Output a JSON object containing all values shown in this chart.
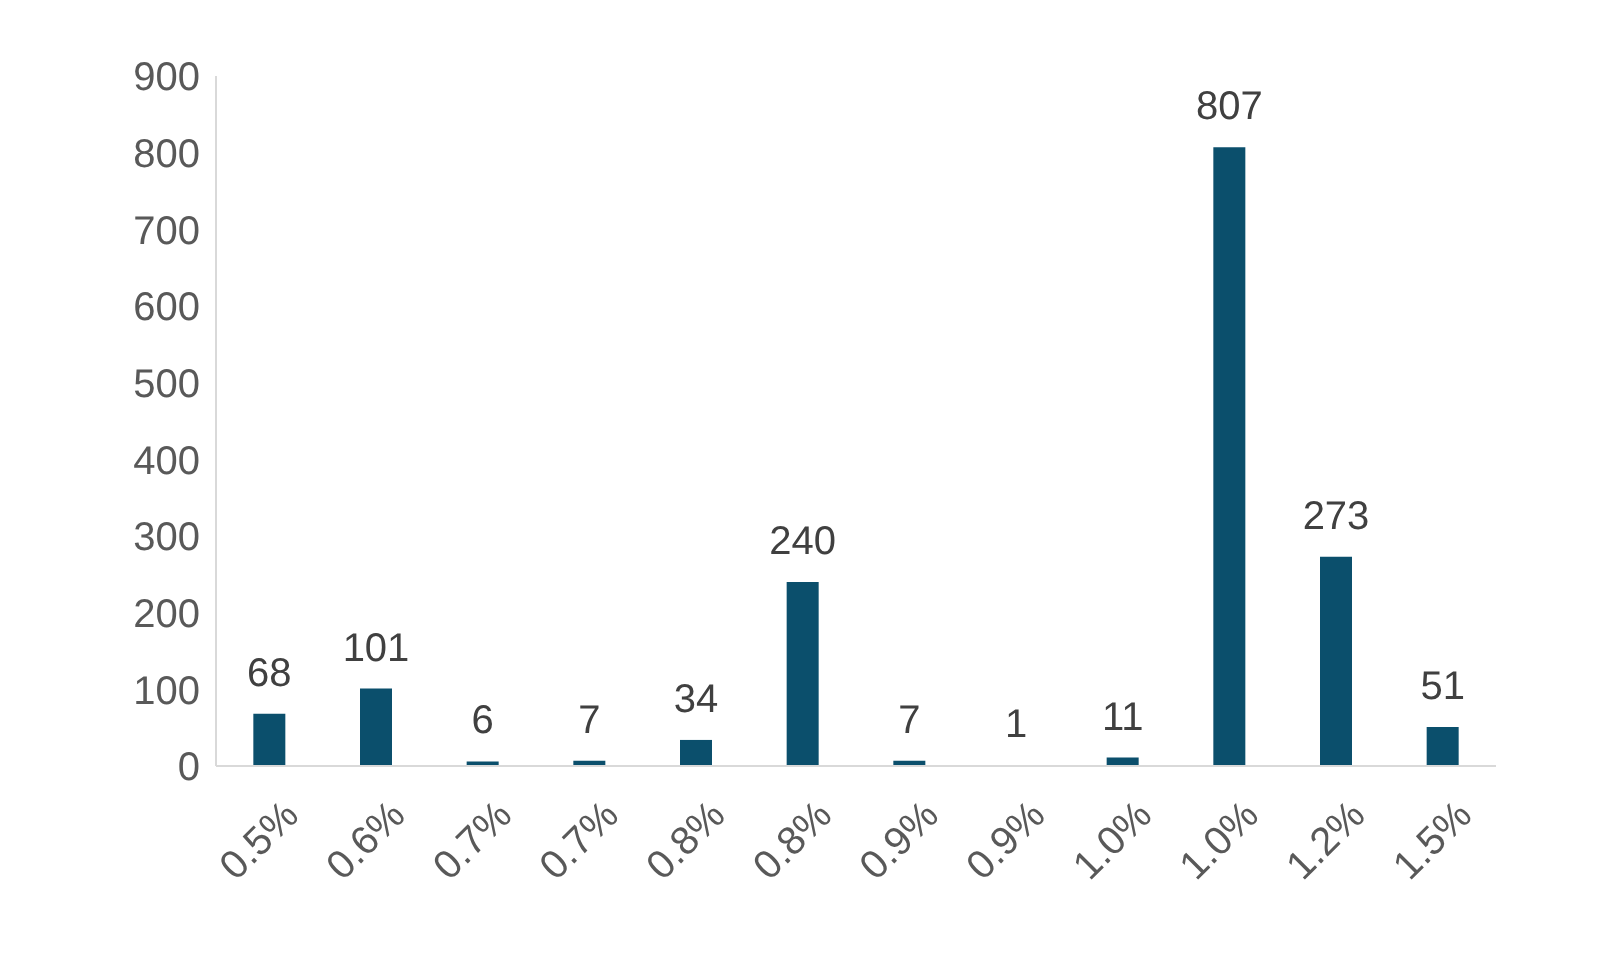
{
  "chart_data": {
    "type": "bar",
    "categories": [
      "0.5%",
      "0.6%",
      "0.7%",
      "0.7%",
      "0.8%",
      "0.8%",
      "0.9%",
      "0.9%",
      "1.0%",
      "1.0%",
      "1.2%",
      "1.5%"
    ],
    "values": [
      68,
      101,
      6,
      7,
      34,
      240,
      7,
      1,
      11,
      807,
      273,
      51
    ],
    "color": "#0b4f6c",
    "ylim": [
      0,
      900
    ],
    "yticks": [
      0,
      100,
      200,
      300,
      400,
      500,
      600,
      700,
      800,
      900
    ],
    "grid": false,
    "data_labels": true
  }
}
